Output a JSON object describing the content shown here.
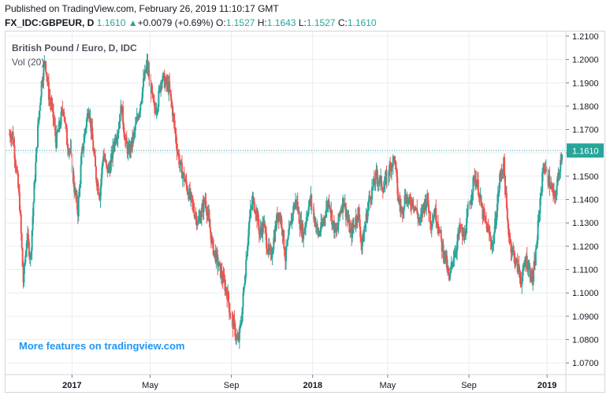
{
  "header": {
    "published": "Published on TradingView.com, February 26, 2019 11:10:17 GMT",
    "symbol": "FX_IDC:GBPEUR, D",
    "last": "1.1610",
    "change_arrow": "▲",
    "change": "+0.0079 (+0.69%)",
    "o_label": "O:",
    "o_value": "1.1527",
    "h_label": "H:",
    "h_value": "1.1643",
    "l_label": "L:",
    "l_value": "1.1527",
    "c_label": "C:",
    "c_value": "1.1610"
  },
  "legend": {
    "title": "British Pound / Euro, D, IDC",
    "vol": "Vol (20)"
  },
  "watermark": "More features on tradingview.com",
  "colors": {
    "up": "#26a69a",
    "down": "#ef5350",
    "grid": "#e9ecf1",
    "axis": "#787b86",
    "price_line": "#26a69a",
    "watermark": "#2196f3"
  },
  "chart_data": {
    "type": "candlestick",
    "title": "British Pound / Euro, D, IDC",
    "ylim": [
      1.065,
      1.212
    ],
    "y_ticks": [
      "1.0700",
      "1.0800",
      "1.0900",
      "1.1000",
      "1.1100",
      "1.1200",
      "1.1300",
      "1.1400",
      "1.1500",
      "1.1600",
      "1.1700",
      "1.1800",
      "1.1900",
      "1.2000",
      "1.2100"
    ],
    "x_ticks": [
      {
        "label": "2017",
        "index": 20,
        "year": true
      },
      {
        "label": "May",
        "index": 45,
        "year": false
      },
      {
        "label": "Sep",
        "index": 71,
        "year": false
      },
      {
        "label": "2018",
        "index": 97,
        "year": true
      },
      {
        "label": "May",
        "index": 121,
        "year": false
      },
      {
        "label": "Sep",
        "index": 147,
        "year": false
      },
      {
        "label": "2019",
        "index": 172,
        "year": true
      }
    ],
    "last_price": "1.1610",
    "grid": true,
    "price_scale": "right",
    "close_series_weekly": [
      1.168,
      1.155,
      1.138,
      1.105,
      1.124,
      1.115,
      1.145,
      1.17,
      1.19,
      1.2,
      1.185,
      1.178,
      1.165,
      1.172,
      1.18,
      1.165,
      1.16,
      1.145,
      1.135,
      1.158,
      1.17,
      1.18,
      1.165,
      1.15,
      1.142,
      1.16,
      1.152,
      1.155,
      1.165,
      1.17,
      1.18,
      1.165,
      1.16,
      1.165,
      1.172,
      1.18,
      1.19,
      1.198,
      1.188,
      1.178,
      1.182,
      1.193,
      1.19,
      1.188,
      1.178,
      1.165,
      1.155,
      1.15,
      1.145,
      1.14,
      1.135,
      1.13,
      1.135,
      1.14,
      1.13,
      1.12,
      1.115,
      1.11,
      1.105,
      1.1,
      1.09,
      1.085,
      1.078,
      1.09,
      1.11,
      1.13,
      1.14,
      1.135,
      1.125,
      1.13,
      1.12,
      1.115,
      1.125,
      1.135,
      1.13,
      1.115,
      1.125,
      1.135,
      1.14,
      1.13,
      1.125,
      1.135,
      1.14,
      1.132,
      1.125,
      1.128,
      1.135,
      1.14,
      1.13,
      1.125,
      1.135,
      1.14,
      1.132,
      1.125,
      1.13,
      1.135,
      1.12,
      1.13,
      1.14,
      1.145,
      1.15,
      1.148,
      1.145,
      1.15,
      1.155,
      1.158,
      1.14,
      1.135,
      1.142,
      1.138,
      1.14,
      1.135,
      1.13,
      1.138,
      1.14,
      1.13,
      1.135,
      1.13,
      1.12,
      1.115,
      1.105,
      1.115,
      1.12,
      1.128,
      1.123,
      1.132,
      1.142,
      1.15,
      1.145,
      1.135,
      1.13,
      1.125,
      1.12,
      1.135,
      1.15,
      1.155,
      1.13,
      1.12,
      1.115,
      1.11,
      1.105,
      1.115,
      1.11,
      1.105,
      1.12,
      1.14,
      1.155,
      1.15,
      1.145,
      1.14,
      1.15,
      1.161
    ]
  }
}
